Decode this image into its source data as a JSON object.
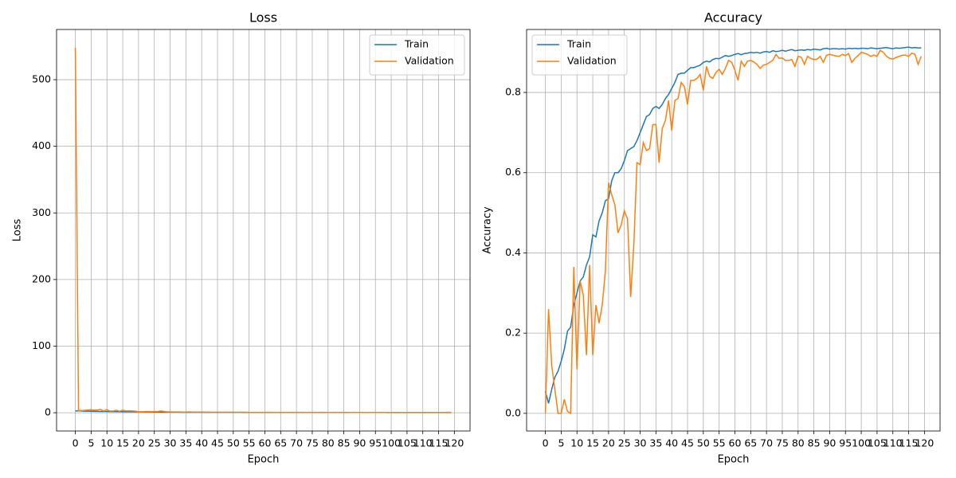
{
  "chart_data": [
    {
      "type": "line",
      "title": "Loss",
      "x_label": "Epoch",
      "y_label": "Loss",
      "x": [
        0,
        1,
        2,
        3,
        4,
        5,
        6,
        7,
        8,
        9,
        10,
        11,
        12,
        13,
        14,
        15,
        16,
        17,
        18,
        19,
        20,
        21,
        22,
        23,
        24,
        25,
        26,
        27,
        28,
        29,
        30,
        31,
        32,
        33,
        34,
        35,
        36,
        37,
        38,
        39,
        40,
        41,
        42,
        43,
        44,
        45,
        46,
        47,
        48,
        49,
        50,
        51,
        52,
        53,
        54,
        55,
        56,
        57,
        58,
        59,
        60,
        61,
        62,
        63,
        64,
        65,
        66,
        67,
        68,
        69,
        70,
        71,
        72,
        73,
        74,
        75,
        76,
        77,
        78,
        79,
        80,
        81,
        82,
        83,
        84,
        85,
        86,
        87,
        88,
        89,
        90,
        91,
        92,
        93,
        94,
        95,
        96,
        97,
        98,
        99,
        100,
        101,
        102,
        103,
        104,
        105,
        106,
        107,
        108,
        109,
        110,
        111,
        112,
        113,
        114,
        115,
        116,
        117,
        118,
        119
      ],
      "series": [
        {
          "name": "Train",
          "color": "#1f77b4",
          "values": [
            2.8,
            2.9,
            2.6,
            2.4,
            2.3,
            2.2,
            2.1,
            2.0,
            1.95,
            1.9,
            1.85,
            1.8,
            1.75,
            1.7,
            1.65,
            1.55,
            1.5,
            1.45,
            1.4,
            1.35,
            1.3,
            1.25,
            1.2,
            1.15,
            1.1,
            1.05,
            1.0,
            0.98,
            0.95,
            0.92,
            0.88,
            0.85,
            0.82,
            0.8,
            0.78,
            0.76,
            0.74,
            0.72,
            0.7,
            0.68,
            0.66,
            0.64,
            0.62,
            0.6,
            0.59,
            0.58,
            0.57,
            0.56,
            0.55,
            0.54,
            0.53,
            0.52,
            0.51,
            0.5,
            0.49,
            0.48,
            0.47,
            0.46,
            0.46,
            0.45,
            0.45,
            0.44,
            0.44,
            0.43,
            0.43,
            0.42,
            0.42,
            0.41,
            0.41,
            0.4,
            0.4,
            0.4,
            0.39,
            0.39,
            0.39,
            0.38,
            0.38,
            0.38,
            0.37,
            0.37,
            0.37,
            0.36,
            0.36,
            0.36,
            0.36,
            0.35,
            0.35,
            0.35,
            0.35,
            0.34,
            0.34,
            0.34,
            0.34,
            0.34,
            0.33,
            0.33,
            0.33,
            0.33,
            0.33,
            0.32,
            0.32,
            0.32,
            0.32,
            0.32,
            0.32,
            0.31,
            0.31,
            0.31,
            0.31,
            0.31,
            0.31,
            0.31,
            0.3,
            0.3,
            0.3,
            0.3,
            0.3,
            0.3,
            0.3,
            0.3
          ]
        },
        {
          "name": "Validation",
          "color": "#ff7f0e",
          "values": [
            548,
            3.5,
            3.2,
            3.6,
            4.1,
            4.5,
            3.9,
            4.2,
            5.0,
            2.4,
            4.8,
            2.5,
            2.7,
            3.8,
            2.3,
            3.9,
            2.8,
            3.0,
            2.8,
            2.4,
            1.5,
            1.6,
            1.7,
            1.9,
            1.8,
            1.7,
            1.75,
            2.6,
            2.0,
            1.3,
            1.3,
            1.15,
            1.2,
            1.2,
            1.0,
            1.0,
            1.3,
            1.05,
            0.95,
            0.8,
            1.0,
            0.8,
            0.8,
            0.7,
            0.72,
            0.85,
            0.68,
            0.68,
            0.66,
            0.64,
            0.75,
            0.58,
            0.63,
            0.64,
            0.6,
            0.58,
            0.62,
            0.57,
            0.52,
            0.54,
            0.6,
            0.66,
            0.53,
            0.56,
            0.52,
            0.52,
            0.53,
            0.55,
            0.57,
            0.55,
            0.54,
            0.52,
            0.51,
            0.47,
            0.49,
            0.49,
            0.5,
            0.5,
            0.5,
            0.54,
            0.47,
            0.48,
            0.52,
            0.47,
            0.49,
            0.49,
            0.49,
            0.47,
            0.51,
            0.46,
            0.46,
            0.46,
            0.47,
            0.47,
            0.46,
            0.47,
            0.45,
            0.51,
            0.48,
            0.46,
            0.44,
            0.45,
            0.46,
            0.47,
            0.46,
            0.47,
            0.43,
            0.44,
            0.46,
            0.47,
            0.48,
            0.47,
            0.46,
            0.45,
            0.45,
            0.46,
            0.44,
            0.45,
            0.51,
            0.47
          ]
        }
      ],
      "xlim": [
        -5.95,
        124.95
      ],
      "xticks": [
        0,
        5,
        10,
        15,
        20,
        25,
        30,
        35,
        40,
        45,
        50,
        55,
        60,
        65,
        70,
        75,
        80,
        85,
        90,
        95,
        100,
        105,
        110,
        115,
        120
      ],
      "ylim": [
        -27.4,
        575.4
      ],
      "yticks": [
        0,
        100,
        200,
        300,
        400,
        500
      ],
      "grid": true,
      "legend_loc": "upper right"
    },
    {
      "type": "line",
      "title": "Accuracy",
      "x_label": "Epoch",
      "y_label": "Accuracy",
      "x": [
        0,
        1,
        2,
        3,
        4,
        5,
        6,
        7,
        8,
        9,
        10,
        11,
        12,
        13,
        14,
        15,
        16,
        17,
        18,
        19,
        20,
        21,
        22,
        23,
        24,
        25,
        26,
        27,
        28,
        29,
        30,
        31,
        32,
        33,
        34,
        35,
        36,
        37,
        38,
        39,
        40,
        41,
        42,
        43,
        44,
        45,
        46,
        47,
        48,
        49,
        50,
        51,
        52,
        53,
        54,
        55,
        56,
        57,
        58,
        59,
        60,
        61,
        62,
        63,
        64,
        65,
        66,
        67,
        68,
        69,
        70,
        71,
        72,
        73,
        74,
        75,
        76,
        77,
        78,
        79,
        80,
        81,
        82,
        83,
        84,
        85,
        86,
        87,
        88,
        89,
        90,
        91,
        92,
        93,
        94,
        95,
        96,
        97,
        98,
        99,
        100,
        101,
        102,
        103,
        104,
        105,
        106,
        107,
        108,
        109,
        110,
        111,
        112,
        113,
        114,
        115,
        116,
        117,
        118,
        119
      ],
      "series": [
        {
          "name": "Train",
          "color": "#1f77b4",
          "values": [
            0.055,
            0.025,
            0.06,
            0.09,
            0.105,
            0.13,
            0.16,
            0.205,
            0.215,
            0.27,
            0.3,
            0.33,
            0.34,
            0.37,
            0.39,
            0.445,
            0.44,
            0.48,
            0.5,
            0.53,
            0.535,
            0.58,
            0.6,
            0.6,
            0.61,
            0.63,
            0.655,
            0.66,
            0.665,
            0.68,
            0.7,
            0.72,
            0.74,
            0.745,
            0.76,
            0.765,
            0.76,
            0.77,
            0.785,
            0.795,
            0.81,
            0.825,
            0.845,
            0.848,
            0.848,
            0.855,
            0.862,
            0.862,
            0.865,
            0.868,
            0.875,
            0.878,
            0.876,
            0.882,
            0.885,
            0.884,
            0.888,
            0.892,
            0.89,
            0.892,
            0.895,
            0.897,
            0.894,
            0.897,
            0.898,
            0.9,
            0.899,
            0.9,
            0.898,
            0.901,
            0.902,
            0.9,
            0.904,
            0.902,
            0.903,
            0.905,
            0.903,
            0.905,
            0.907,
            0.904,
            0.905,
            0.906,
            0.905,
            0.907,
            0.906,
            0.908,
            0.907,
            0.906,
            0.909,
            0.91,
            0.908,
            0.909,
            0.909,
            0.908,
            0.909,
            0.908,
            0.91,
            0.909,
            0.91,
            0.909,
            0.91,
            0.91,
            0.909,
            0.911,
            0.91,
            0.909,
            0.91,
            0.911,
            0.912,
            0.91,
            0.909,
            0.911,
            0.91,
            0.911,
            0.912,
            0.913,
            0.911,
            0.912,
            0.911,
            0.911
          ]
        },
        {
          "name": "Validation",
          "color": "#ff7f0e",
          "values": [
            0.0,
            0.26,
            0.12,
            0.06,
            0.0,
            0.0,
            0.035,
            0.005,
            0.0,
            0.365,
            0.11,
            0.33,
            0.295,
            0.145,
            0.37,
            0.145,
            0.27,
            0.225,
            0.27,
            0.355,
            0.575,
            0.545,
            0.52,
            0.45,
            0.47,
            0.505,
            0.485,
            0.29,
            0.42,
            0.625,
            0.62,
            0.675,
            0.655,
            0.66,
            0.72,
            0.72,
            0.625,
            0.71,
            0.73,
            0.78,
            0.705,
            0.78,
            0.785,
            0.825,
            0.815,
            0.77,
            0.83,
            0.83,
            0.835,
            0.845,
            0.805,
            0.865,
            0.84,
            0.835,
            0.85,
            0.858,
            0.845,
            0.86,
            0.88,
            0.875,
            0.855,
            0.83,
            0.878,
            0.865,
            0.878,
            0.88,
            0.876,
            0.87,
            0.86,
            0.868,
            0.87,
            0.875,
            0.88,
            0.895,
            0.885,
            0.886,
            0.88,
            0.88,
            0.882,
            0.865,
            0.89,
            0.888,
            0.87,
            0.89,
            0.885,
            0.882,
            0.883,
            0.89,
            0.875,
            0.893,
            0.895,
            0.893,
            0.891,
            0.89,
            0.895,
            0.892,
            0.897,
            0.875,
            0.885,
            0.892,
            0.9,
            0.898,
            0.895,
            0.89,
            0.893,
            0.89,
            0.905,
            0.9,
            0.89,
            0.885,
            0.883,
            0.887,
            0.89,
            0.893,
            0.893,
            0.89,
            0.898,
            0.895,
            0.87,
            0.89
          ]
        }
      ],
      "xlim": [
        -5.95,
        124.95
      ],
      "xticks": [
        0,
        5,
        10,
        15,
        20,
        25,
        30,
        35,
        40,
        45,
        50,
        55,
        60,
        65,
        70,
        75,
        80,
        85,
        90,
        95,
        100,
        105,
        110,
        115,
        120
      ],
      "ylim": [
        -0.044,
        0.957
      ],
      "yticks": [
        {
          "value": 0,
          "label": "0.0"
        },
        0.2,
        0.4,
        0.6,
        0.8
      ],
      "grid": true,
      "legend_loc": "upper left"
    }
  ]
}
